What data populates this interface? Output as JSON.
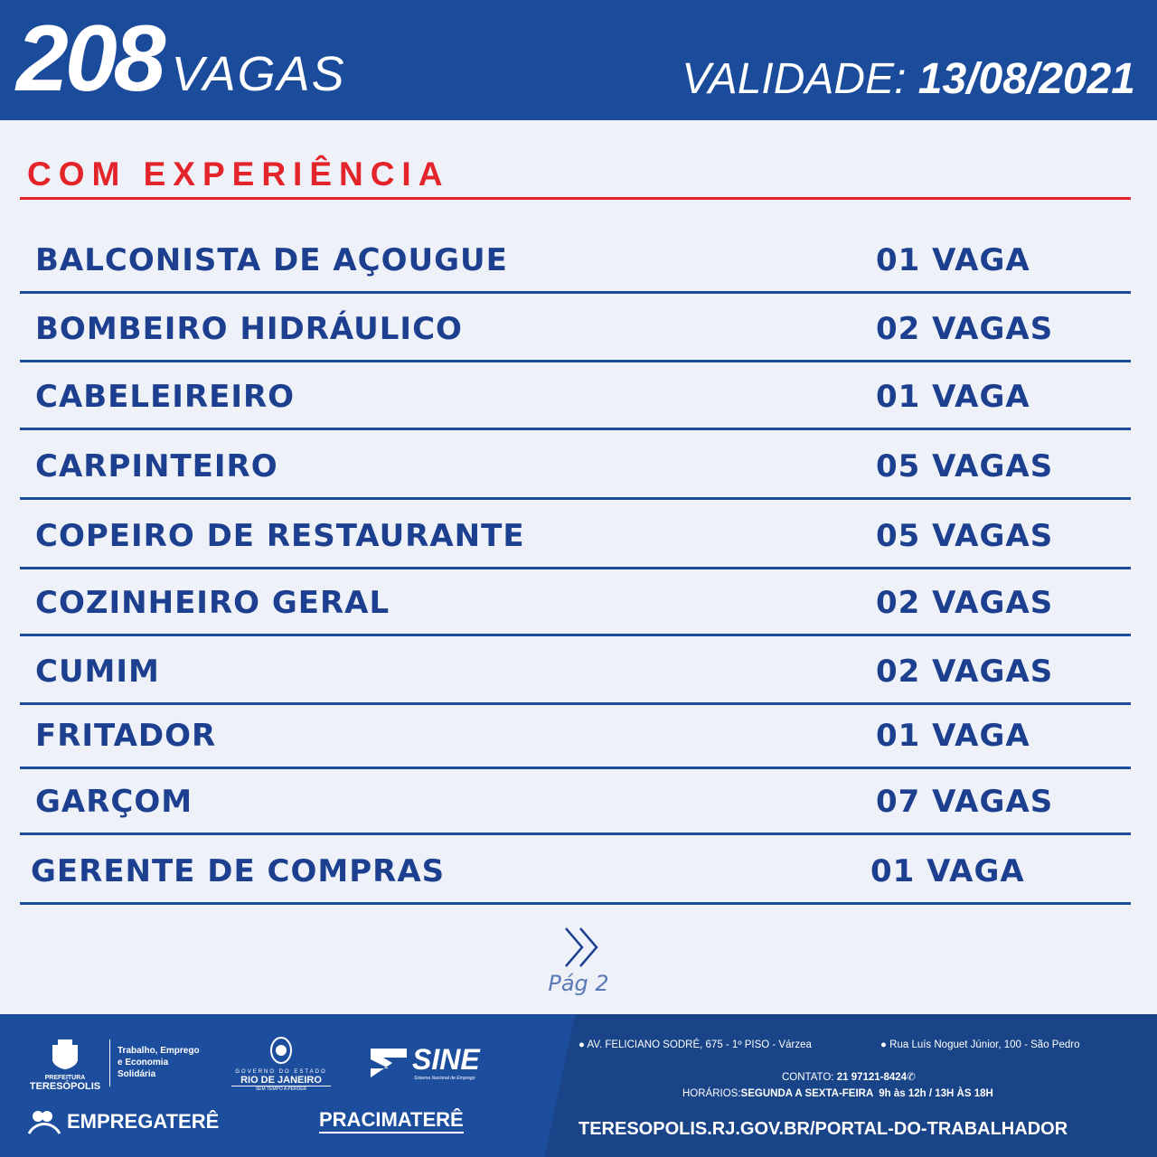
{
  "header": {
    "count": "208",
    "count_label": "VAGAS",
    "validity_label": "VALIDADE:",
    "validity_date": "13/08/2021"
  },
  "section_title": "COM EXPERIÊNCIA",
  "jobs": [
    {
      "title": "BALCONISTA DE AÇOUGUE",
      "openings": "01 VAGA"
    },
    {
      "title": "BOMBEIRO HIDRÁULICO",
      "openings": "02 VAGAS"
    },
    {
      "title": "CABELEIREIRO",
      "openings": "01 VAGA"
    },
    {
      "title": "CARPINTEIRO",
      "openings": "05 VAGAS"
    },
    {
      "title": "COPEIRO DE RESTAURANTE",
      "openings": "05 VAGAS"
    },
    {
      "title": "COZINHEIRO GERAL",
      "openings": "02 VAGAS"
    },
    {
      "title": "CUMIM",
      "openings": "02 VAGAS"
    },
    {
      "title": "FRITADOR",
      "openings": "01 VAGA"
    },
    {
      "title": "GARÇOM",
      "openings": "07 VAGAS"
    },
    {
      "title": "GERENTE DE COMPRAS",
      "openings": "01 VAGA"
    }
  ],
  "pagination": {
    "label": "Pág 2",
    "icon": "double-chevron-right-icon"
  },
  "footer": {
    "logos": {
      "prefeitura_small": "PREFEITURA",
      "prefeitura": "TERESÓPOLIS",
      "secretaria": [
        "Trabalho, Emprego",
        "e Economia",
        "Solidária"
      ],
      "governo_small": "GOVERNO DO ESTADO",
      "governo": "RIO DE JANEIRO",
      "governo_tag": "SEM TEMPO A PERDER",
      "sine": "SINE",
      "sine_sub": "Sistema Nacional de Emprego",
      "empregatere": "EMPREGATERÊ",
      "pracimatere": "PRACIMATERÊ"
    },
    "address1": "AV. FELICIANO SODRÉ, 675 - 1º PISO - Várzea",
    "address2": "Rua Luís Noguet Júnior, 100 - São Pedro",
    "contact_label": "CONTATO:",
    "contact": "21 97121-8424",
    "hours_label": "HORÁRIOS:",
    "hours": "SEGUNDA A SEXTA-FEIRA  9h às 12h / 13H ÀS 18H",
    "url": "TERESOPOLIS.RJ.GOV.BR/PORTAL-DO-TRABALHADOR"
  },
  "colors": {
    "primary": "#1b4b9b",
    "accent": "#e3242b",
    "text": "#1d3f8f",
    "background": "#eef2f8"
  }
}
